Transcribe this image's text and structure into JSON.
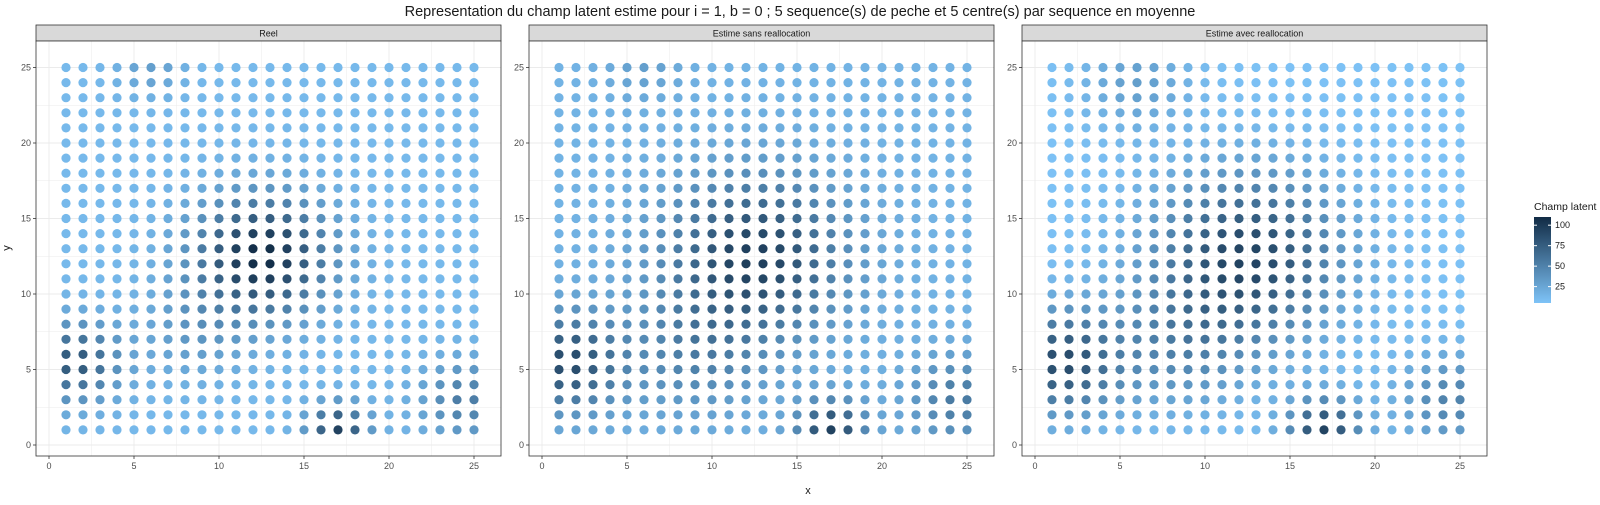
{
  "chart_data": {
    "type": "scatter",
    "title": "Representation du champ latent estime pour i = 1, b = 0 ; 5 sequence(s) de peche et 5 centre(s) par sequence en moyenne",
    "xlabel": "x",
    "ylabel": "y",
    "xlim": [
      0,
      25
    ],
    "ylim": [
      0,
      25
    ],
    "x_ticks": [
      0,
      5,
      10,
      15,
      20,
      25
    ],
    "y_ticks": [
      0,
      5,
      10,
      15,
      20,
      25
    ],
    "grid": true,
    "legend": {
      "title": "Champ latent",
      "placement": "right",
      "ticks": [
        25,
        50,
        75,
        100
      ],
      "range": [
        5,
        110
      ],
      "color_low": "#7ec3f7",
      "color_high": "#112b45"
    },
    "grid_points": {
      "x": [
        1,
        2,
        3,
        4,
        5,
        6,
        7,
        8,
        9,
        10,
        11,
        12,
        13,
        14,
        15,
        16,
        17,
        18,
        19,
        20,
        21,
        22,
        23,
        24,
        25
      ],
      "y": [
        1,
        2,
        3,
        4,
        5,
        6,
        7,
        8,
        9,
        10,
        11,
        12,
        13,
        14,
        15,
        16,
        17,
        18,
        19,
        20,
        21,
        22,
        23,
        24,
        25
      ]
    },
    "facets": [
      {
        "label": "Reel",
        "value_model": "gaussian_sum",
        "baseline": 12,
        "components": [
          {
            "cx": 12.5,
            "cy": 12.5,
            "amp": 98,
            "sigma": 2.7
          },
          {
            "cx": 1.5,
            "cy": 5.5,
            "amp": 68,
            "sigma": 1.8
          },
          {
            "cx": 17,
            "cy": 1,
            "amp": 82,
            "sigma": 1.2
          },
          {
            "cx": 24.5,
            "cy": 3,
            "amp": 42,
            "sigma": 1.8
          },
          {
            "cx": 8.5,
            "cy": 7.5,
            "amp": 20,
            "sigma": 2.2
          },
          {
            "cx": 6,
            "cy": 25,
            "amp": 18,
            "sigma": 1.3
          }
        ]
      },
      {
        "label": "Estime sans reallocation",
        "value_model": "gaussian_sum",
        "baseline": 16,
        "components": [
          {
            "cx": 12.5,
            "cy": 12.5,
            "amp": 80,
            "sigma": 3.6
          },
          {
            "cx": 1.5,
            "cy": 5.5,
            "amp": 72,
            "sigma": 2.2
          },
          {
            "cx": 17,
            "cy": 1,
            "amp": 78,
            "sigma": 1.4
          },
          {
            "cx": 24.5,
            "cy": 3,
            "amp": 40,
            "sigma": 2.0
          },
          {
            "cx": 9,
            "cy": 6,
            "amp": 30,
            "sigma": 2.8
          },
          {
            "cx": 6,
            "cy": 25,
            "amp": 14,
            "sigma": 1.5
          }
        ]
      },
      {
        "label": "Estime avec reallocation",
        "value_model": "gaussian_sum",
        "baseline": 6,
        "components": [
          {
            "cx": 12.5,
            "cy": 12.5,
            "amp": 86,
            "sigma": 3.8
          },
          {
            "cx": 1.5,
            "cy": 5.5,
            "amp": 80,
            "sigma": 2.4
          },
          {
            "cx": 17,
            "cy": 1,
            "amp": 86,
            "sigma": 1.5
          },
          {
            "cx": 24.5,
            "cy": 3,
            "amp": 44,
            "sigma": 2.1
          },
          {
            "cx": 8.5,
            "cy": 6.5,
            "amp": 34,
            "sigma": 3.0
          },
          {
            "cx": 6,
            "cy": 24,
            "amp": 24,
            "sigma": 2.2
          }
        ]
      }
    ]
  }
}
